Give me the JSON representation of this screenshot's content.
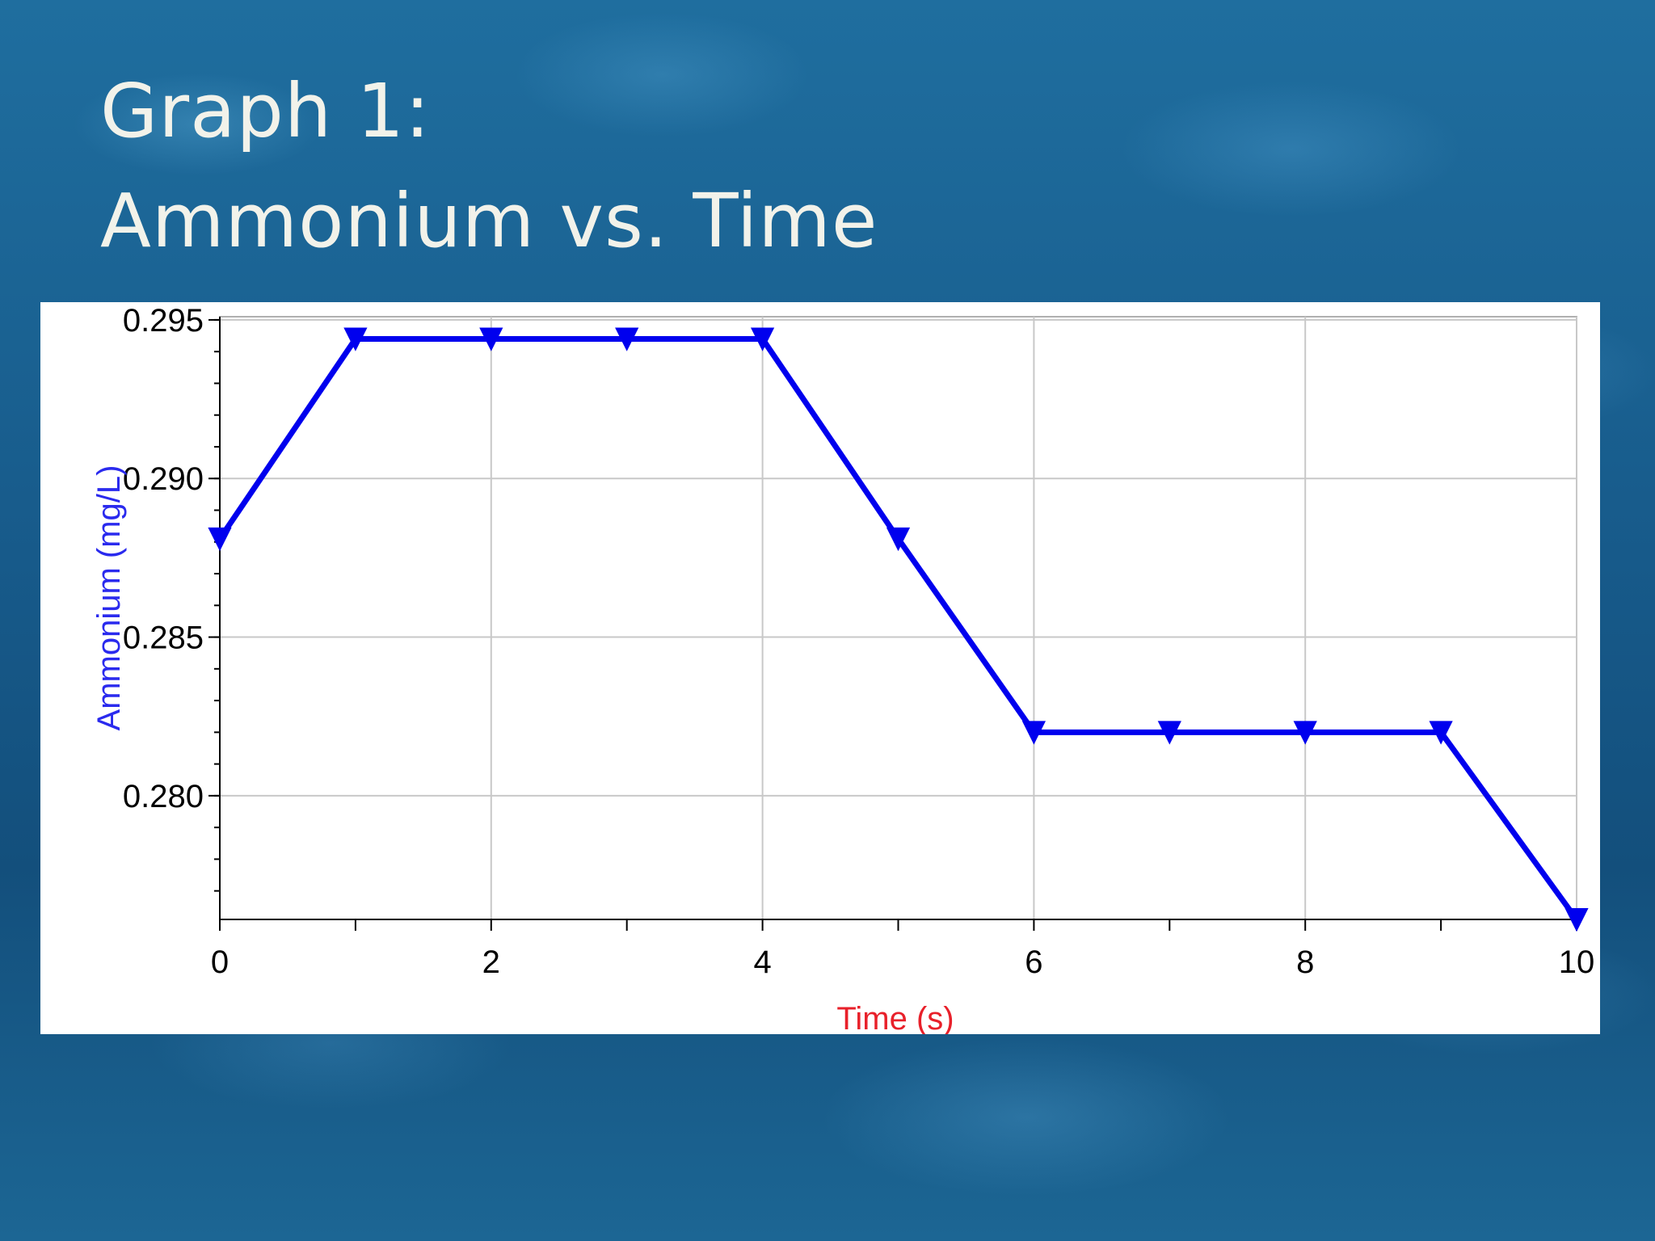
{
  "slide": {
    "title_line1": "Graph 1:",
    "title_line2": "Ammonium vs. Time"
  },
  "chart_data": {
    "type": "line",
    "title": "",
    "xlabel": "Time (s)",
    "ylabel": "Ammonium (mg/L)",
    "xlim": [
      0,
      10
    ],
    "ylim": [
      0.2761,
      0.2951
    ],
    "x_ticks": [
      "0",
      "2",
      "4",
      "6",
      "8",
      "10"
    ],
    "y_ticks": [
      "0.280",
      "0.285",
      "0.290",
      "0.295"
    ],
    "grid": true,
    "marker": "down-triangle",
    "series": [
      {
        "x": [
          0,
          1,
          2,
          3,
          4,
          5,
          6,
          7,
          8,
          9,
          10
        ],
        "y": [
          0.2881,
          0.2944,
          0.2944,
          0.2944,
          0.2944,
          0.2881,
          0.282,
          0.282,
          0.282,
          0.282,
          0.2761
        ],
        "color": "#0000ee"
      }
    ],
    "colors": {
      "ylabel": "#2a2aee",
      "xlabel": "#e8202a",
      "grid": "#c8c8c8"
    }
  }
}
